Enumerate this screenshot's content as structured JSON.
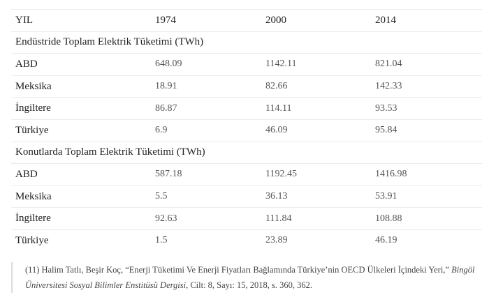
{
  "table": {
    "header": [
      "YIL",
      "1974",
      "2000",
      "2014"
    ],
    "sections": [
      {
        "title": "Endüstride Toplam Elektrik Tüketimi (TWh)",
        "rows": [
          [
            "ABD",
            "648.09",
            "1142.11",
            "821.04"
          ],
          [
            "Meksika",
            "18.91",
            "82.66",
            "142.33"
          ],
          [
            "İngiltere",
            "86.87",
            "114.11",
            "93.53"
          ],
          [
            "Türkiye",
            "6.9",
            "46.09",
            "95.84"
          ]
        ]
      },
      {
        "title": "Konutlarda Toplam Elektrik Tüketimi (TWh)",
        "rows": [
          [
            "ABD",
            "587.18",
            "1192.45",
            "1416.98"
          ],
          [
            "Meksika",
            "5.5",
            "36.13",
            "53.91"
          ],
          [
            "İngiltere",
            "92.63",
            "111.84",
            "108.88"
          ],
          [
            "Türkiye",
            "1.5",
            "23.89",
            "46.19"
          ]
        ]
      }
    ]
  },
  "footnote": {
    "prefix": "(11) Halim Tatlı, Beşir Koç, “Enerji Tüketimi Ve Enerji Fiyatları Bağlamında Türkiye’nin OECD Ülkeleri İçindeki Yeri,” ",
    "journal": "Bingöl Üniversitesi Sosyal Bilimler Enstitüsü Dergisi",
    "suffix": ", Cilt: 8, Sayı: 15, 2018, s. 360, 362."
  }
}
